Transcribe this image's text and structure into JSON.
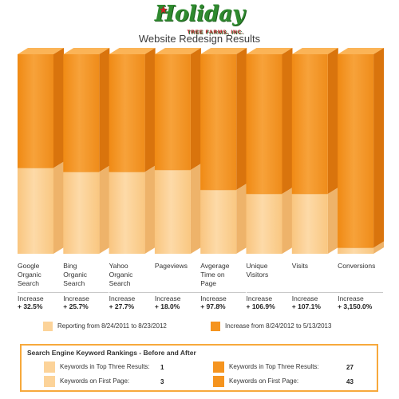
{
  "logo": {
    "brand": "Holiday",
    "sub": "TREE FARMS, INC."
  },
  "chart_data": {
    "type": "bar",
    "title": "Website Redesign Results",
    "stacked": true,
    "categories": [
      [
        "Google",
        "Organic",
        "Search"
      ],
      [
        "Bing",
        "Organic",
        "Search"
      ],
      [
        "Yahoo",
        "Organic",
        "Search"
      ],
      [
        "Pageviews"
      ],
      [
        "Avgerage",
        "Time on",
        "Page"
      ],
      [
        "Unique",
        "Visitors"
      ],
      [
        "Visits"
      ],
      [
        "Conversions"
      ]
    ],
    "series": [
      {
        "name": "Reporting from 8/24/2011 to 8/23/2012",
        "color": "#fcd399",
        "share": [
          0.43,
          0.41,
          0.41,
          0.42,
          0.32,
          0.3,
          0.3,
          0.03
        ]
      },
      {
        "name": "Increase from 8/24/2012 to 5/13/2013",
        "color": "#f5941f",
        "share": [
          0.57,
          0.59,
          0.59,
          0.58,
          0.68,
          0.7,
          0.7,
          0.97
        ]
      }
    ],
    "increase_word": "Increase",
    "increases": [
      "+ 32.5%",
      "+ 25.7%",
      "+ 27.7%",
      "+ 18.0%",
      "+ 97.8%",
      "+ 106.9%",
      "+ 107.1%",
      "+ 3,150.0%"
    ],
    "legend_position": "bottom"
  },
  "keyword_rankings": {
    "title": "Search Engine Keyword Rankings - Before and After",
    "before": [
      {
        "label": "Keywords in Top Three Results:",
        "value": "1"
      },
      {
        "label": "Keywords on First Page:",
        "value": "3"
      }
    ],
    "after": [
      {
        "label": "Keywords in Top Three Results:",
        "value": "27"
      },
      {
        "label": "Keywords on First Page:",
        "value": "43"
      }
    ]
  }
}
